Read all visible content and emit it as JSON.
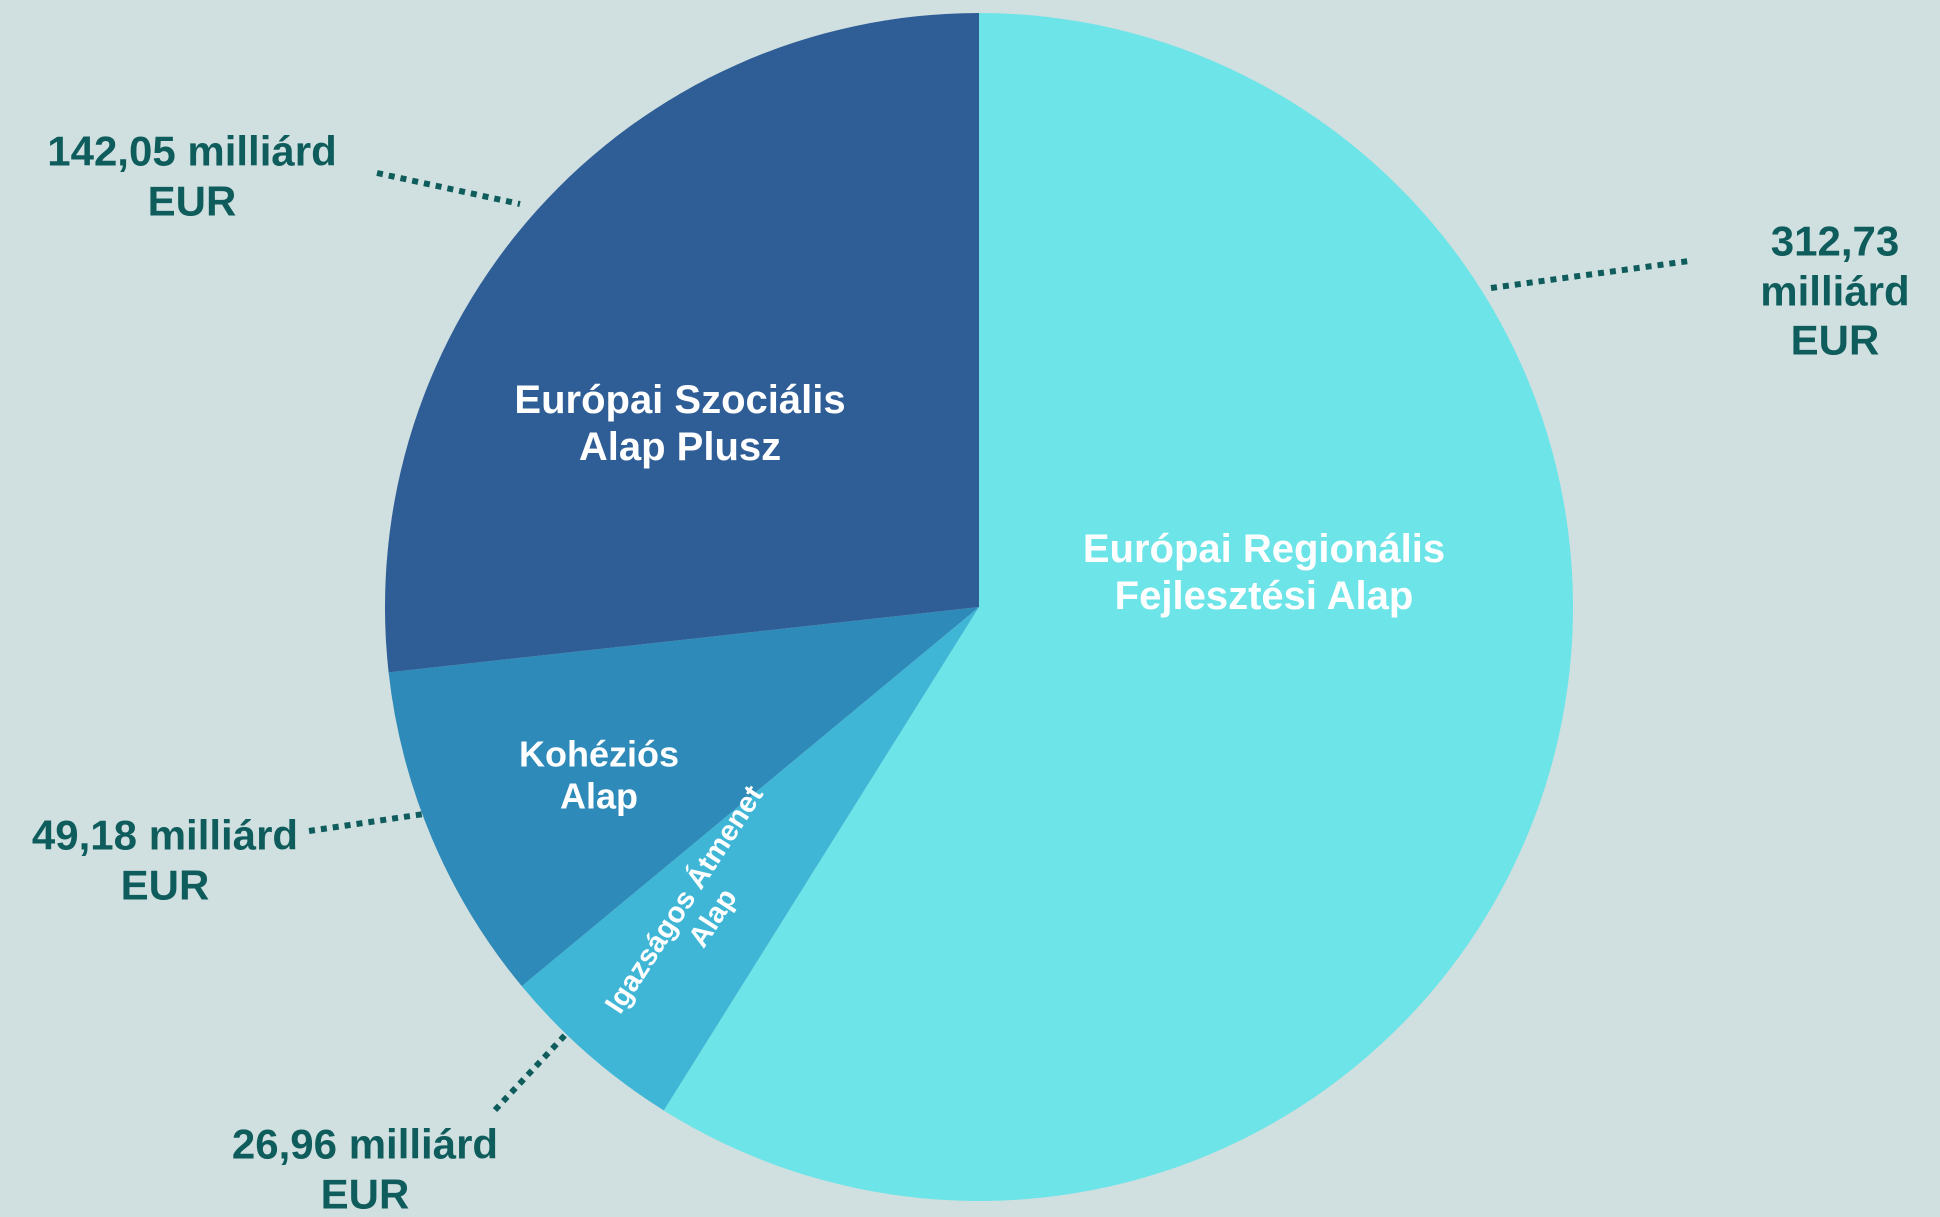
{
  "chart_data": {
    "type": "pie",
    "categories": [
      "Európai Regionális Fejlesztési Alap",
      "Igazságos Átmenet Alap",
      "Kohéziós Alap",
      "Európai Szociális Alap Plusz"
    ],
    "values": [
      312.73,
      26.96,
      49.18,
      142.05
    ],
    "value_labels": [
      "312,73 milliárd EUR",
      "26,96 milliárd EUR",
      "49,18 milliárd EUR",
      "142,05 milliárd EUR"
    ],
    "colors": [
      "#6ce4e8",
      "#40b6d6",
      "#2e8ab8",
      "#2f5e97"
    ]
  }
}
